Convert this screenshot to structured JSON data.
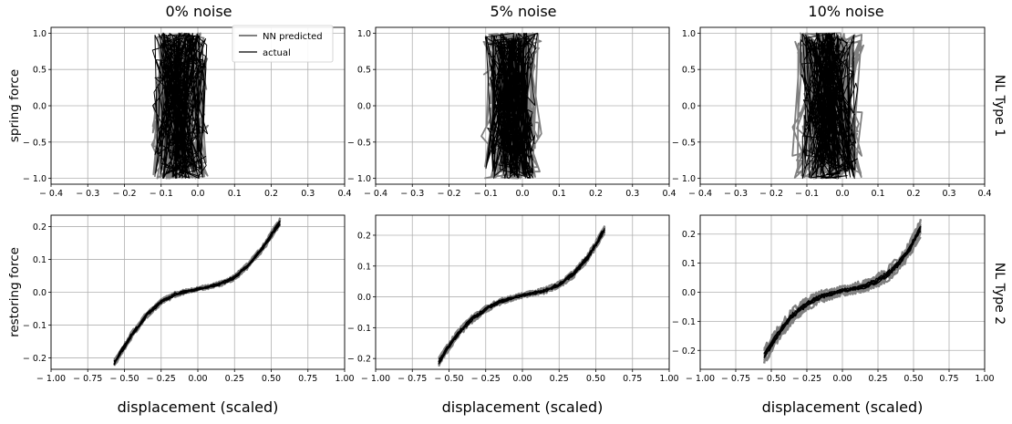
{
  "figure": {
    "column_titles": [
      "0% noise",
      "5% noise",
      "10% noise"
    ],
    "row_labels": [
      "NL Type 1",
      "NL Type 2"
    ],
    "legend": [
      {
        "label": "NN predicted",
        "color": "#808080"
      },
      {
        "label": "actual",
        "color": "#000000"
      }
    ],
    "colors": {
      "predicted": "#808080",
      "actual": "#000000",
      "grid": "#b0b0b0"
    }
  },
  "chart_data": [
    {
      "type": "line",
      "row": 0,
      "col": 0,
      "title": "0% noise",
      "ylabel": "spring force",
      "xlabel": "",
      "xlim": [
        -0.4,
        0.4
      ],
      "ylim": [
        -1.08,
        1.08
      ],
      "xticks": [
        -0.4,
        -0.3,
        -0.2,
        -0.1,
        0.0,
        0.1,
        0.2,
        0.3,
        0.4
      ],
      "xtick_labels": [
        "− 0.4",
        "− 0.3",
        "− 0.2",
        "− 0.1",
        "0.0",
        "0.1",
        "0.2",
        "0.3",
        "0.4"
      ],
      "yticks": [
        -1.0,
        -0.5,
        0.0,
        0.5,
        1.0
      ],
      "ytick_labels": [
        "− 1.0",
        "− 0.5",
        "0.0",
        "0.5",
        "1.0"
      ],
      "grid": true,
      "legend": "top-right",
      "series": [
        {
          "name": "NN predicted",
          "kind": "band",
          "x_center": [
            -0.05,
            -0.05
          ],
          "y": [
            -1.0,
            1.0
          ],
          "half_width": 0.065
        },
        {
          "name": "actual",
          "kind": "band",
          "x_center": [
            -0.05,
            -0.05
          ],
          "y": [
            -1.0,
            1.0
          ],
          "half_width": 0.065
        }
      ]
    },
    {
      "type": "line",
      "row": 0,
      "col": 1,
      "title": "5% noise",
      "ylabel": "",
      "xlabel": "",
      "xlim": [
        -0.4,
        0.4
      ],
      "ylim": [
        -1.08,
        1.08
      ],
      "xticks": [
        -0.4,
        -0.3,
        -0.2,
        -0.1,
        0.0,
        0.1,
        0.2,
        0.3,
        0.4
      ],
      "xtick_labels": [
        "− 0.4",
        "− 0.3",
        "− 0.2",
        "− 0.1",
        "0.0",
        "0.1",
        "0.2",
        "0.3",
        "0.4"
      ],
      "yticks": [
        -1.0,
        -0.5,
        0.0,
        0.5,
        1.0
      ],
      "ytick_labels": [
        "− 1.0",
        "− 0.5",
        "0.0",
        "0.5",
        "1.0"
      ],
      "grid": true,
      "series": [
        {
          "name": "NN predicted",
          "kind": "band",
          "x_center": [
            -0.03,
            -0.03
          ],
          "y": [
            -1.0,
            1.0
          ],
          "half_width": 0.07
        },
        {
          "name": "actual",
          "kind": "band",
          "x_center": [
            -0.03,
            -0.03
          ],
          "y": [
            -1.0,
            1.0
          ],
          "half_width": 0.06
        }
      ]
    },
    {
      "type": "line",
      "row": 0,
      "col": 2,
      "title": "10% noise",
      "ylabel": "",
      "xlabel": "",
      "xlim": [
        -0.4,
        0.4
      ],
      "ylim": [
        -1.08,
        1.08
      ],
      "xticks": [
        -0.4,
        -0.3,
        -0.2,
        -0.1,
        0.0,
        0.1,
        0.2,
        0.3,
        0.4
      ],
      "xtick_labels": [
        "− 0.4",
        "− 0.3",
        "− 0.2",
        "− 0.1",
        "0.0",
        "0.1",
        "0.2",
        "0.3",
        "0.4"
      ],
      "yticks": [
        -1.0,
        -0.5,
        0.0,
        0.5,
        1.0
      ],
      "ytick_labels": [
        "− 1.0",
        "− 0.5",
        "0.0",
        "0.5",
        "1.0"
      ],
      "grid": true,
      "series": [
        {
          "name": "NN predicted",
          "kind": "band",
          "x_center": [
            -0.04,
            -0.04
          ],
          "y": [
            -1.0,
            1.0
          ],
          "half_width": 0.085
        },
        {
          "name": "actual",
          "kind": "band",
          "x_center": [
            -0.04,
            -0.04
          ],
          "y": [
            -1.0,
            1.0
          ],
          "half_width": 0.07
        }
      ]
    },
    {
      "type": "line",
      "row": 1,
      "col": 0,
      "title": "",
      "ylabel": "restoring force",
      "xlabel": "displacement (scaled)",
      "xlim": [
        -1.0,
        1.0
      ],
      "ylim": [
        -0.235,
        0.235
      ],
      "xticks": [
        -1.0,
        -0.75,
        -0.5,
        -0.25,
        0.0,
        0.25,
        0.5,
        0.75,
        1.0
      ],
      "xtick_labels": [
        "− 1.00",
        "− 0.75",
        "− 0.50",
        "− 0.25",
        "0.00",
        "0.25",
        "0.50",
        "0.75",
        "1.00"
      ],
      "yticks": [
        -0.2,
        -0.1,
        0.0,
        0.1,
        0.2
      ],
      "ytick_labels": [
        "− 0.2",
        "− 0.1",
        "0.0",
        "0.1",
        "0.2"
      ],
      "grid": true,
      "series": [
        {
          "name": "NN predicted",
          "kind": "curve",
          "x": [
            -0.57,
            -0.45,
            -0.35,
            -0.25,
            -0.15,
            0.0,
            0.15,
            0.25,
            0.35,
            0.45,
            0.56
          ],
          "y": [
            -0.215,
            -0.13,
            -0.07,
            -0.03,
            -0.005,
            0.01,
            0.025,
            0.045,
            0.085,
            0.14,
            0.215
          ],
          "half_width": 0.017
        },
        {
          "name": "actual",
          "kind": "curve",
          "x": [
            -0.57,
            -0.45,
            -0.35,
            -0.25,
            -0.15,
            0.0,
            0.15,
            0.25,
            0.35,
            0.45,
            0.56
          ],
          "y": [
            -0.215,
            -0.13,
            -0.07,
            -0.03,
            -0.005,
            0.01,
            0.025,
            0.045,
            0.085,
            0.14,
            0.215
          ],
          "half_width": 0.01
        }
      ]
    },
    {
      "type": "line",
      "row": 1,
      "col": 1,
      "title": "",
      "ylabel": "",
      "xlabel": "displacement (scaled)",
      "xlim": [
        -1.0,
        1.0
      ],
      "ylim": [
        -0.235,
        0.265
      ],
      "xticks": [
        -1.0,
        -0.75,
        -0.5,
        -0.25,
        0.0,
        0.25,
        0.5,
        0.75,
        1.0
      ],
      "xtick_labels": [
        "− 1.00",
        "− 0.75",
        "− 0.50",
        "− 0.25",
        "0.00",
        "0.25",
        "0.50",
        "0.75",
        "1.00"
      ],
      "yticks": [
        -0.2,
        -0.1,
        0.0,
        0.1,
        0.2
      ],
      "ytick_labels": [
        "− 0.2",
        "− 0.1",
        "0.0",
        "0.1",
        "0.2"
      ],
      "grid": true,
      "series": [
        {
          "name": "NN predicted",
          "kind": "curve",
          "x": [
            -0.57,
            -0.45,
            -0.35,
            -0.25,
            -0.15,
            0.0,
            0.15,
            0.25,
            0.35,
            0.45,
            0.56
          ],
          "y": [
            -0.21,
            -0.125,
            -0.075,
            -0.04,
            -0.015,
            0.005,
            0.02,
            0.04,
            0.075,
            0.13,
            0.22
          ],
          "half_width": 0.022
        },
        {
          "name": "actual",
          "kind": "curve",
          "x": [
            -0.57,
            -0.45,
            -0.35,
            -0.25,
            -0.15,
            0.0,
            0.15,
            0.25,
            0.35,
            0.45,
            0.56
          ],
          "y": [
            -0.21,
            -0.125,
            -0.075,
            -0.04,
            -0.015,
            0.005,
            0.02,
            0.04,
            0.075,
            0.13,
            0.22
          ],
          "half_width": 0.012
        }
      ]
    },
    {
      "type": "line",
      "row": 1,
      "col": 2,
      "title": "",
      "ylabel": "",
      "xlabel": "displacement (scaled)",
      "xlim": [
        -1.0,
        1.0
      ],
      "ylim": [
        -0.265,
        0.265
      ],
      "xticks": [
        -1.0,
        -0.75,
        -0.5,
        -0.25,
        0.0,
        0.25,
        0.5,
        0.75,
        1.0
      ],
      "xtick_labels": [
        "− 1.00",
        "− 0.75",
        "− 0.50",
        "− 0.25",
        "0.00",
        "0.25",
        "0.50",
        "0.75",
        "1.00"
      ],
      "yticks": [
        -0.2,
        -0.1,
        0.0,
        0.1,
        0.2
      ],
      "ytick_labels": [
        "− 0.2",
        "− 0.1",
        "0.0",
        "0.1",
        "0.2"
      ],
      "grid": true,
      "series": [
        {
          "name": "NN predicted",
          "kind": "curve",
          "x": [
            -0.55,
            -0.45,
            -0.35,
            -0.25,
            -0.15,
            0.0,
            0.15,
            0.25,
            0.35,
            0.45,
            0.55
          ],
          "y": [
            -0.22,
            -0.14,
            -0.08,
            -0.04,
            -0.015,
            0.005,
            0.02,
            0.04,
            0.075,
            0.13,
            0.22
          ],
          "half_width": 0.045
        },
        {
          "name": "actual",
          "kind": "curve",
          "x": [
            -0.55,
            -0.45,
            -0.35,
            -0.25,
            -0.15,
            0.0,
            0.15,
            0.25,
            0.35,
            0.45,
            0.55
          ],
          "y": [
            -0.22,
            -0.14,
            -0.08,
            -0.04,
            -0.015,
            0.005,
            0.02,
            0.04,
            0.075,
            0.13,
            0.22
          ],
          "half_width": 0.018
        }
      ]
    }
  ]
}
